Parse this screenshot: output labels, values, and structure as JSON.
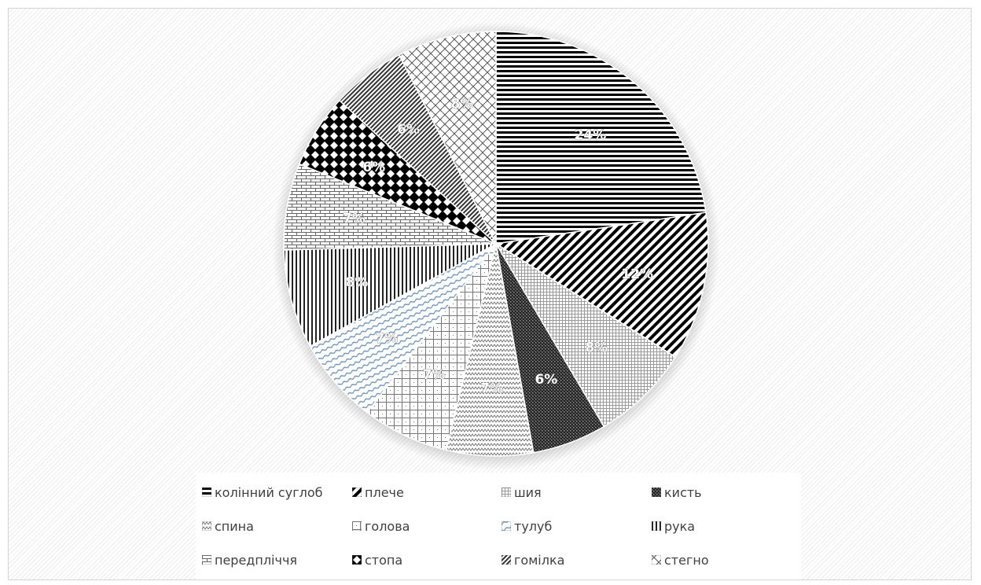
{
  "chart_data": {
    "type": "pie",
    "title": "",
    "legend_position": "bottom",
    "slices": [
      {
        "label": "колінний суглоб",
        "value": 24,
        "data_label": "24%",
        "pattern": "hlines"
      },
      {
        "label": "плече",
        "value": 12,
        "data_label": "12%",
        "pattern": "diag-down"
      },
      {
        "label": "шия",
        "value": 8,
        "data_label": "8%",
        "pattern": "grid-small"
      },
      {
        "label": "кисть",
        "value": 6,
        "data_label": "6%",
        "pattern": "checker-dark"
      },
      {
        "label": "спина",
        "value": 7,
        "data_label": "7%",
        "pattern": "zigzag"
      },
      {
        "label": "голова",
        "value": 7,
        "data_label": "7%",
        "pattern": "grid-large"
      },
      {
        "label": "тулуб",
        "value": 7,
        "data_label": "7%",
        "pattern": "wave"
      },
      {
        "label": "рука",
        "value": 8,
        "data_label": "8%",
        "pattern": "vlines"
      },
      {
        "label": "передпліччя",
        "value": 7,
        "data_label": "7%",
        "pattern": "brick"
      },
      {
        "label": "стопа",
        "value": 6,
        "data_label": "6%",
        "pattern": "diamond"
      },
      {
        "label": "гомілка",
        "value": 6,
        "data_label": "6%",
        "pattern": "diag-dense"
      },
      {
        "label": "стегно",
        "value": 8,
        "data_label": "8%",
        "pattern": "weave"
      }
    ]
  }
}
